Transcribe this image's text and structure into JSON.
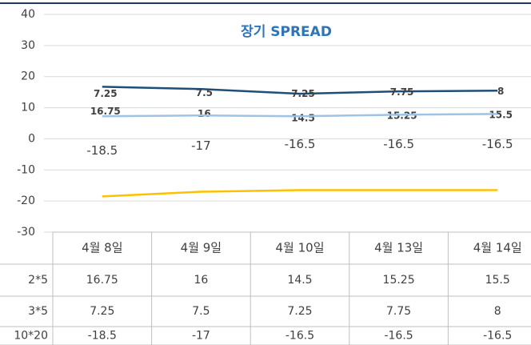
{
  "chart_data": {
    "type": "line",
    "title": "장기 SPREAD",
    "categories": [
      "4월 8일",
      "4월 9일",
      "4월 10일",
      "4월 13일",
      "4월 14일"
    ],
    "series": [
      {
        "name": "2*5",
        "color": "#1f4e79",
        "values": [
          16.75,
          16,
          14.5,
          15.25,
          15.5
        ]
      },
      {
        "name": "3*5",
        "color": "#9dc3e6",
        "values": [
          7.25,
          7.5,
          7.25,
          7.75,
          8
        ]
      },
      {
        "name": "10*20",
        "color": "#ffc000",
        "values": [
          -18.5,
          -17,
          -16.5,
          -16.5,
          -16.5
        ]
      }
    ],
    "ylim": [
      -30,
      40
    ],
    "yticks": [
      -30,
      -20,
      -10,
      0,
      10,
      20,
      30,
      40
    ],
    "grid": true
  }
}
